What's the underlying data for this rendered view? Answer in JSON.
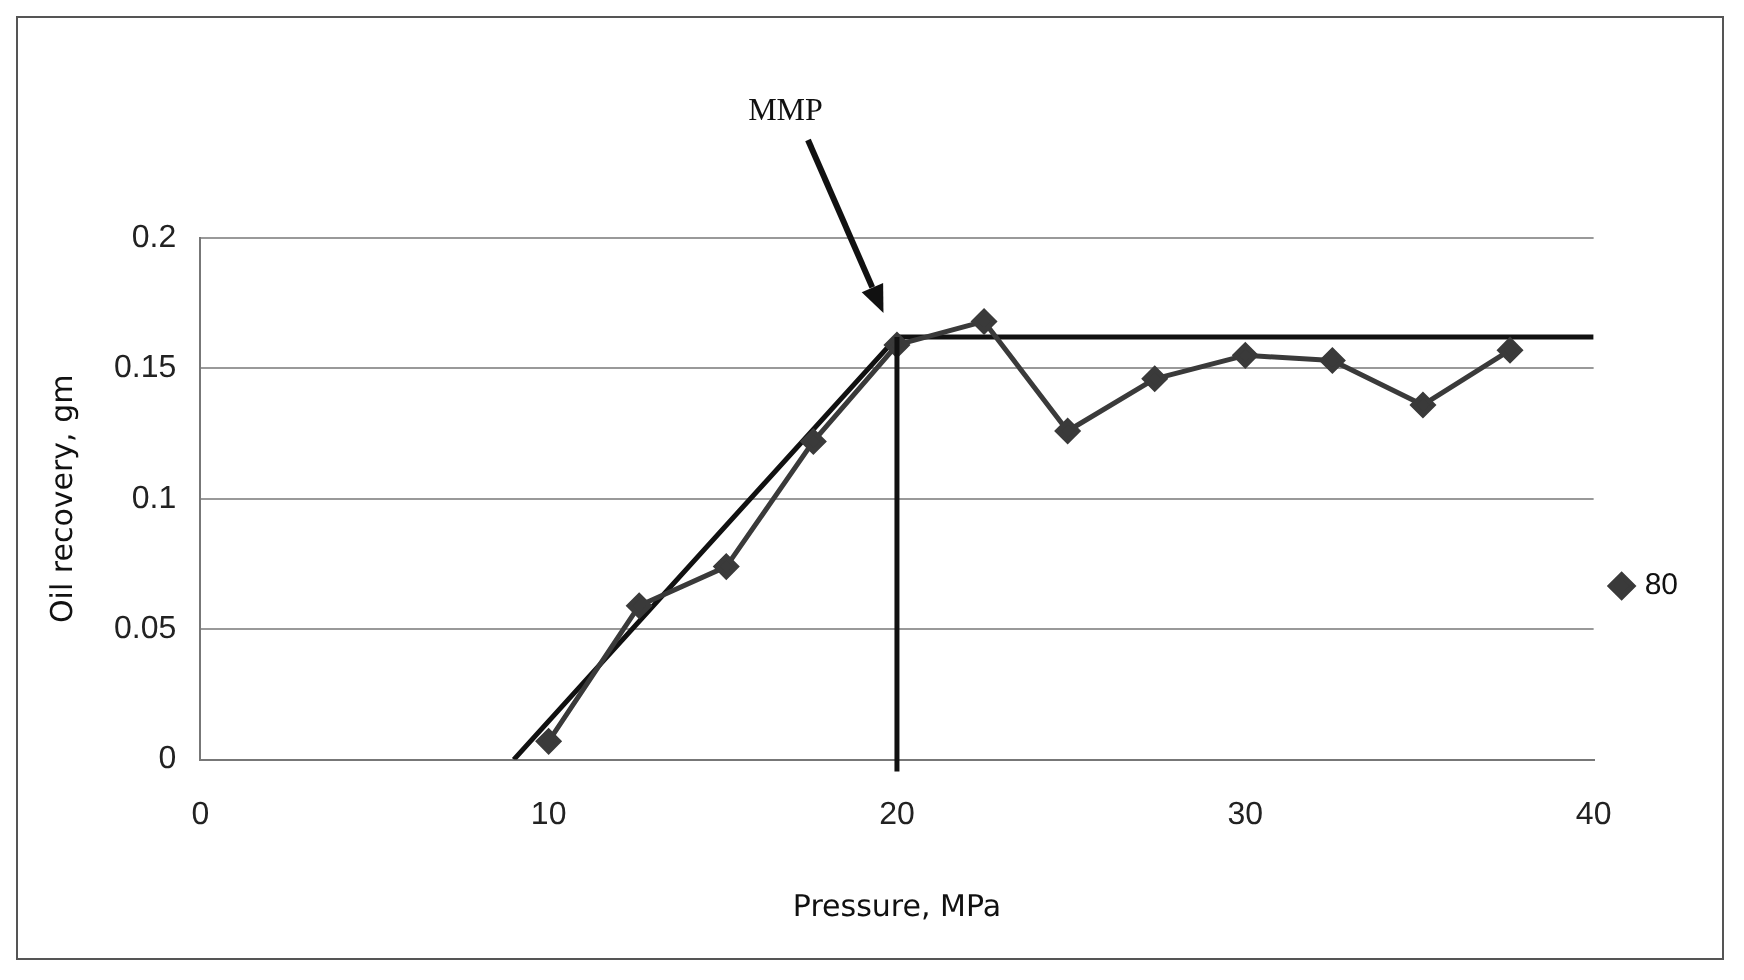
{
  "chart_data": {
    "type": "line",
    "xlabel": "Pressure, MPa",
    "ylabel": "Oil recovery, gm",
    "xlim": [
      0,
      40
    ],
    "xticks": [
      0,
      10,
      20,
      30,
      40
    ],
    "ylim": [
      0,
      0.2
    ],
    "yticks": [
      0,
      0.05,
      0.1,
      0.15,
      0.2
    ],
    "grid": "y",
    "legend": "right",
    "marker": "diamond",
    "line_style": "solid",
    "series": [
      {
        "name": "80",
        "color": "#3a3a3a",
        "x": [
          10,
          12.6,
          15.1,
          17.6,
          20,
          22.5,
          24.9,
          27.4,
          30,
          32.5,
          35.1,
          37.6
        ],
        "values": [
          0.007,
          0.059,
          0.074,
          0.122,
          0.159,
          0.168,
          0.126,
          0.146,
          0.155,
          0.153,
          0.136,
          0.157
        ]
      },
      {
        "type": "line",
        "color": "#111111",
        "marker": "none",
        "x": [
          9,
          20,
          40
        ],
        "values": [
          0,
          0.162,
          0.162
        ]
      }
    ],
    "ref_lines": [
      {
        "axis": "x",
        "value": 20,
        "color": "#111111"
      }
    ],
    "annotations": [
      "MMP"
    ]
  }
}
